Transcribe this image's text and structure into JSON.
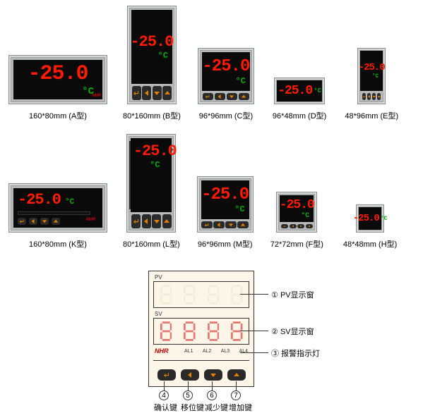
{
  "value_text": "-25.0",
  "unit_text": "°C",
  "pv_color": "#ff1a00",
  "unit_color": "#00b000",
  "bezel_color": "#b5b9b9",
  "screen_color": "#0a0a0a",
  "row1": [
    {
      "w": 140,
      "h": 70,
      "label": "160*80mm (A型)",
      "screen": {
        "l": 6,
        "t": 6,
        "r": 6,
        "b": 6
      },
      "pv_fs": 30,
      "unit_fs": 14,
      "layout": "big"
    },
    {
      "w": 70,
      "h": 140,
      "label": "80*160mm (B型)",
      "screen": {
        "l": 5,
        "t": 5,
        "r": 5,
        "b": 28
      },
      "pv_fs": 22,
      "unit_fs": 12,
      "layout": "tall4"
    },
    {
      "w": 80,
      "h": 80,
      "label": "96*96mm (C型)",
      "screen": {
        "l": 5,
        "t": 5,
        "r": 5,
        "b": 18
      },
      "pv_fs": 24,
      "unit_fs": 12,
      "layout": "sq4"
    },
    {
      "w": 72,
      "h": 38,
      "label": "96*48mm (D型)",
      "screen": {
        "l": 3,
        "t": 3,
        "r": 3,
        "b": 3
      },
      "pv_fs": 18,
      "unit_fs": 9,
      "layout": "mini"
    },
    {
      "w": 40,
      "h": 80,
      "label": "48*96mm (E型)",
      "screen": {
        "l": 3,
        "t": 3,
        "r": 3,
        "b": 18
      },
      "pv_fs": 14,
      "unit_fs": 8,
      "layout": "tall4"
    }
  ],
  "row2": [
    {
      "w": 140,
      "h": 70,
      "label": "160*80mm (K型)",
      "screen": {
        "l": 6,
        "t": 6,
        "r": 6,
        "b": 6
      },
      "pv_fs": 22,
      "unit_fs": 11,
      "layout": "kbar"
    },
    {
      "w": 70,
      "h": 140,
      "label": "80*160mm (L型)",
      "screen": {
        "l": 5,
        "t": 5,
        "r": 5,
        "b": 28
      },
      "pv_fs": 22,
      "unit_fs": 12,
      "layout": "lbar"
    },
    {
      "w": 80,
      "h": 80,
      "label": "96*96mm (M型)",
      "screen": {
        "l": 5,
        "t": 5,
        "r": 5,
        "b": 18
      },
      "pv_fs": 24,
      "unit_fs": 12,
      "layout": "sq4"
    },
    {
      "w": 58,
      "h": 58,
      "label": "72*72mm (F型)",
      "screen": {
        "l": 4,
        "t": 4,
        "r": 4,
        "b": 14
      },
      "pv_fs": 18,
      "unit_fs": 10,
      "layout": "sq4"
    },
    {
      "w": 40,
      "h": 40,
      "label": "48*48mm (H型)",
      "screen": {
        "l": 3,
        "t": 3,
        "r": 3,
        "b": 3
      },
      "pv_fs": 14,
      "unit_fs": 8,
      "layout": "mini"
    }
  ],
  "row1_gaps": [
    0,
    22,
    24,
    26,
    26
  ],
  "row2_gaps": [
    0,
    22,
    24,
    24,
    28
  ],
  "diagram": {
    "pv_label": "PV",
    "sv_label": "SV",
    "nhr": "NHR",
    "alarms": [
      "AL1",
      "AL2",
      "AL3",
      "AL4"
    ],
    "annos": [
      {
        "n": "①",
        "t": "PV显示窗"
      },
      {
        "n": "②",
        "t": "SV显示窗"
      },
      {
        "n": "③",
        "t": "报警指示灯"
      },
      {
        "n": "④",
        "t": "确认键"
      },
      {
        "n": "⑤",
        "t": "移位键"
      },
      {
        "n": "⑥",
        "t": "减少键"
      },
      {
        "n": "⑦",
        "t": "增加键"
      }
    ]
  }
}
